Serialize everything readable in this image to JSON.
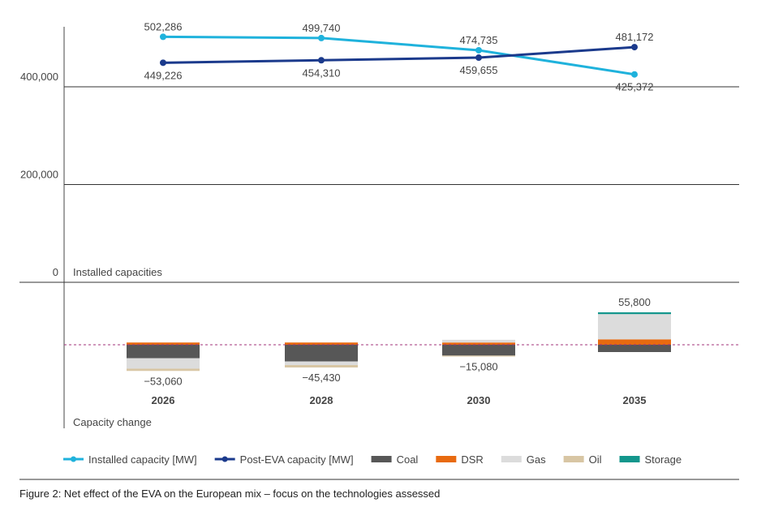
{
  "chart_data": [
    {
      "type": "line",
      "panel_label": "Installed capacities",
      "categories": [
        "2026",
        "2028",
        "2030",
        "2035"
      ],
      "y_ticks": [
        "0",
        "200,000",
        "400,000"
      ],
      "ylim": [
        0,
        520000
      ],
      "grid": true,
      "series": [
        {
          "name": "Installed capacity [MW]",
          "color": "#1fb2dc",
          "values": [
            502286,
            499740,
            474735,
            425372
          ],
          "labels": [
            "502,286",
            "499,740",
            "474,735",
            "425,372"
          ]
        },
        {
          "name": "Post-EVA capacity [MW]",
          "color": "#1b3a8c",
          "values": [
            449226,
            454310,
            459655,
            481172
          ],
          "labels": [
            "449,226",
            "454,310",
            "459,655",
            "481,172"
          ]
        }
      ]
    },
    {
      "type": "bar",
      "stacked": true,
      "panel_label": "Capacity change",
      "categories": [
        "2026",
        "2028",
        "2030",
        "2035"
      ],
      "series": [
        {
          "name": "Coal",
          "color": "#575757",
          "values": [
            -30000,
            -37000,
            -24000,
            -16200
          ]
        },
        {
          "name": "DSR",
          "color": "#e86a10",
          "values": [
            5000,
            5000,
            5000,
            12000
          ]
        },
        {
          "name": "Gas",
          "color": "#dcdcdc",
          "values": [
            -23000,
            -8000,
            6000,
            56000
          ]
        },
        {
          "name": "Oil",
          "color": "#d8c6a4",
          "values": [
            -5060,
            -5430,
            -2080,
            0
          ]
        },
        {
          "name": "Storage",
          "color": "#13968c",
          "values": [
            0,
            0,
            0,
            4000
          ]
        }
      ],
      "net_labels": [
        "−53,060",
        "−45,430",
        "−15,080",
        "55,800"
      ],
      "net_values": [
        -53060,
        -45430,
        -15080,
        55800
      ],
      "zero_line": "dashed",
      "zero_line_color": "#a0307a"
    }
  ],
  "legend": [
    "Installed capacity [MW]",
    "Post-EVA capacity [MW]",
    "Coal",
    "DSR",
    "Gas",
    "Oil",
    "Storage"
  ],
  "caption": "Figure 2: Net effect of the EVA on the European mix – focus on the technologies assessed"
}
